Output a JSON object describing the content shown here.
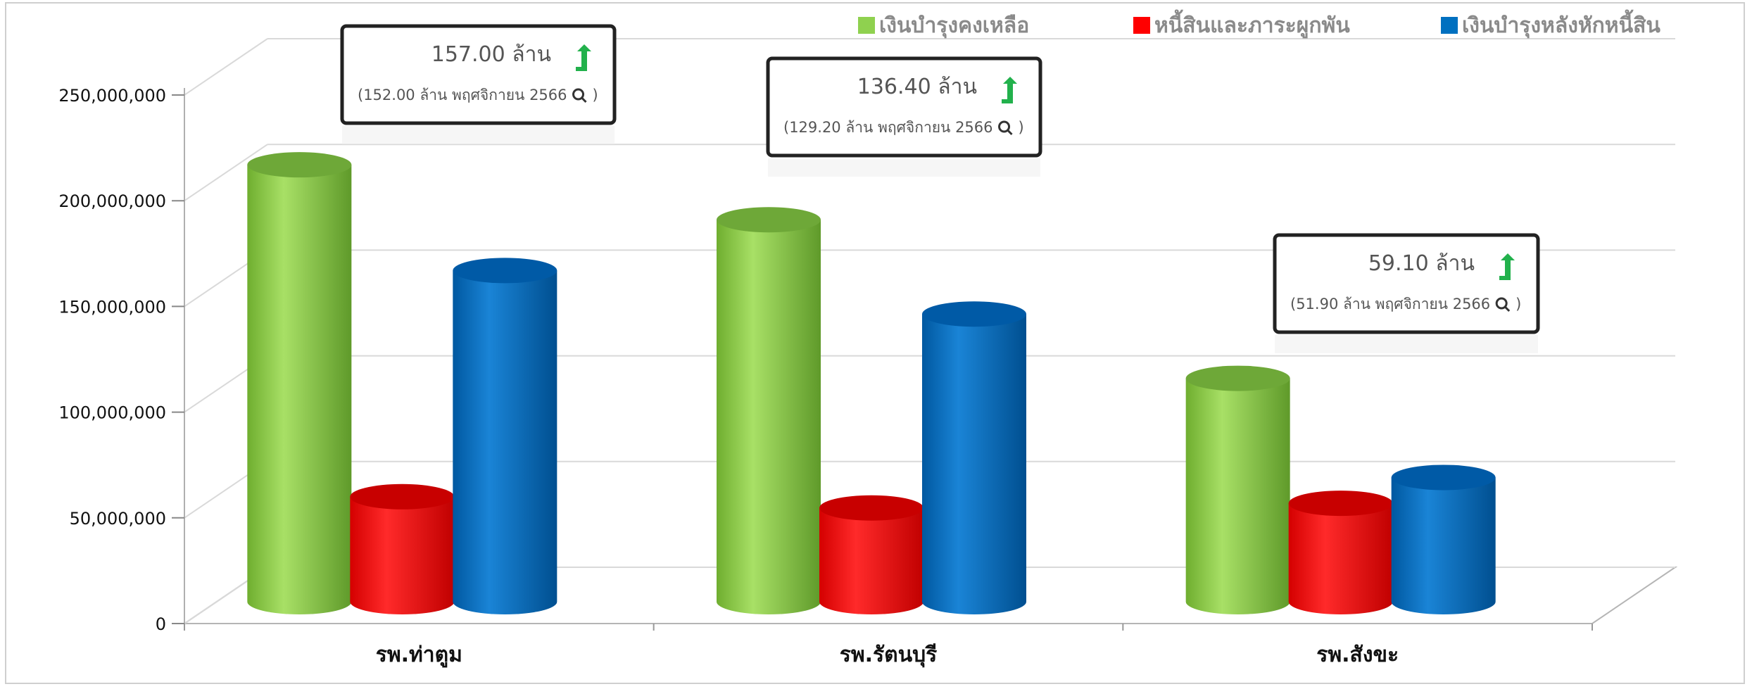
{
  "chart_data": {
    "type": "bar",
    "title": "",
    "xlabel": "",
    "ylabel": "",
    "ylim": [
      0,
      250000000
    ],
    "yticks": [
      0,
      50000000,
      100000000,
      150000000,
      200000000,
      250000000
    ],
    "ytick_labels": [
      "0",
      "50,000,000",
      "100,000,000",
      "150,000,000",
      "200,000,000",
      "250,000,000"
    ],
    "categories": [
      "รพ.ท่าตูม",
      "รพ.รัตนบุรี",
      "รพ.สังขะ"
    ],
    "series": [
      {
        "name": "เงินบำรุงคงเหลือ",
        "color": "#8fd14f",
        "values": [
          207000000,
          181000000,
          106000000
        ]
      },
      {
        "name": "หนี้สินและภาระผูกพัน",
        "color": "#ff0000",
        "values": [
          50000000,
          44700000,
          46900000
        ]
      },
      {
        "name": "เงินบำรุงหลังหักหนี้สิน",
        "color": "#0070c0",
        "values": [
          157000000,
          136400000,
          59100000
        ]
      }
    ],
    "legend_position": "top-right",
    "grid": true,
    "annotations": [
      {
        "category": "รพ.ท่าตูม",
        "main": "157.00 ล้าน",
        "sub": "(152.00 ล้าน พฤศจิกายน 2566",
        "arrow": "up",
        "arrow_color": "#22b14c"
      },
      {
        "category": "รพ.รัตนบุรี",
        "main": "136.40 ล้าน",
        "sub": "(129.20 ล้าน พฤศจิกายน 2566",
        "arrow": "up",
        "arrow_color": "#22b14c"
      },
      {
        "category": "รพ.สังขะ",
        "main": "59.10 ล้าน",
        "sub": "(51.90 ล้าน พฤศจิกายน 2566",
        "arrow": "up",
        "arrow_color": "#22b14c"
      }
    ]
  }
}
